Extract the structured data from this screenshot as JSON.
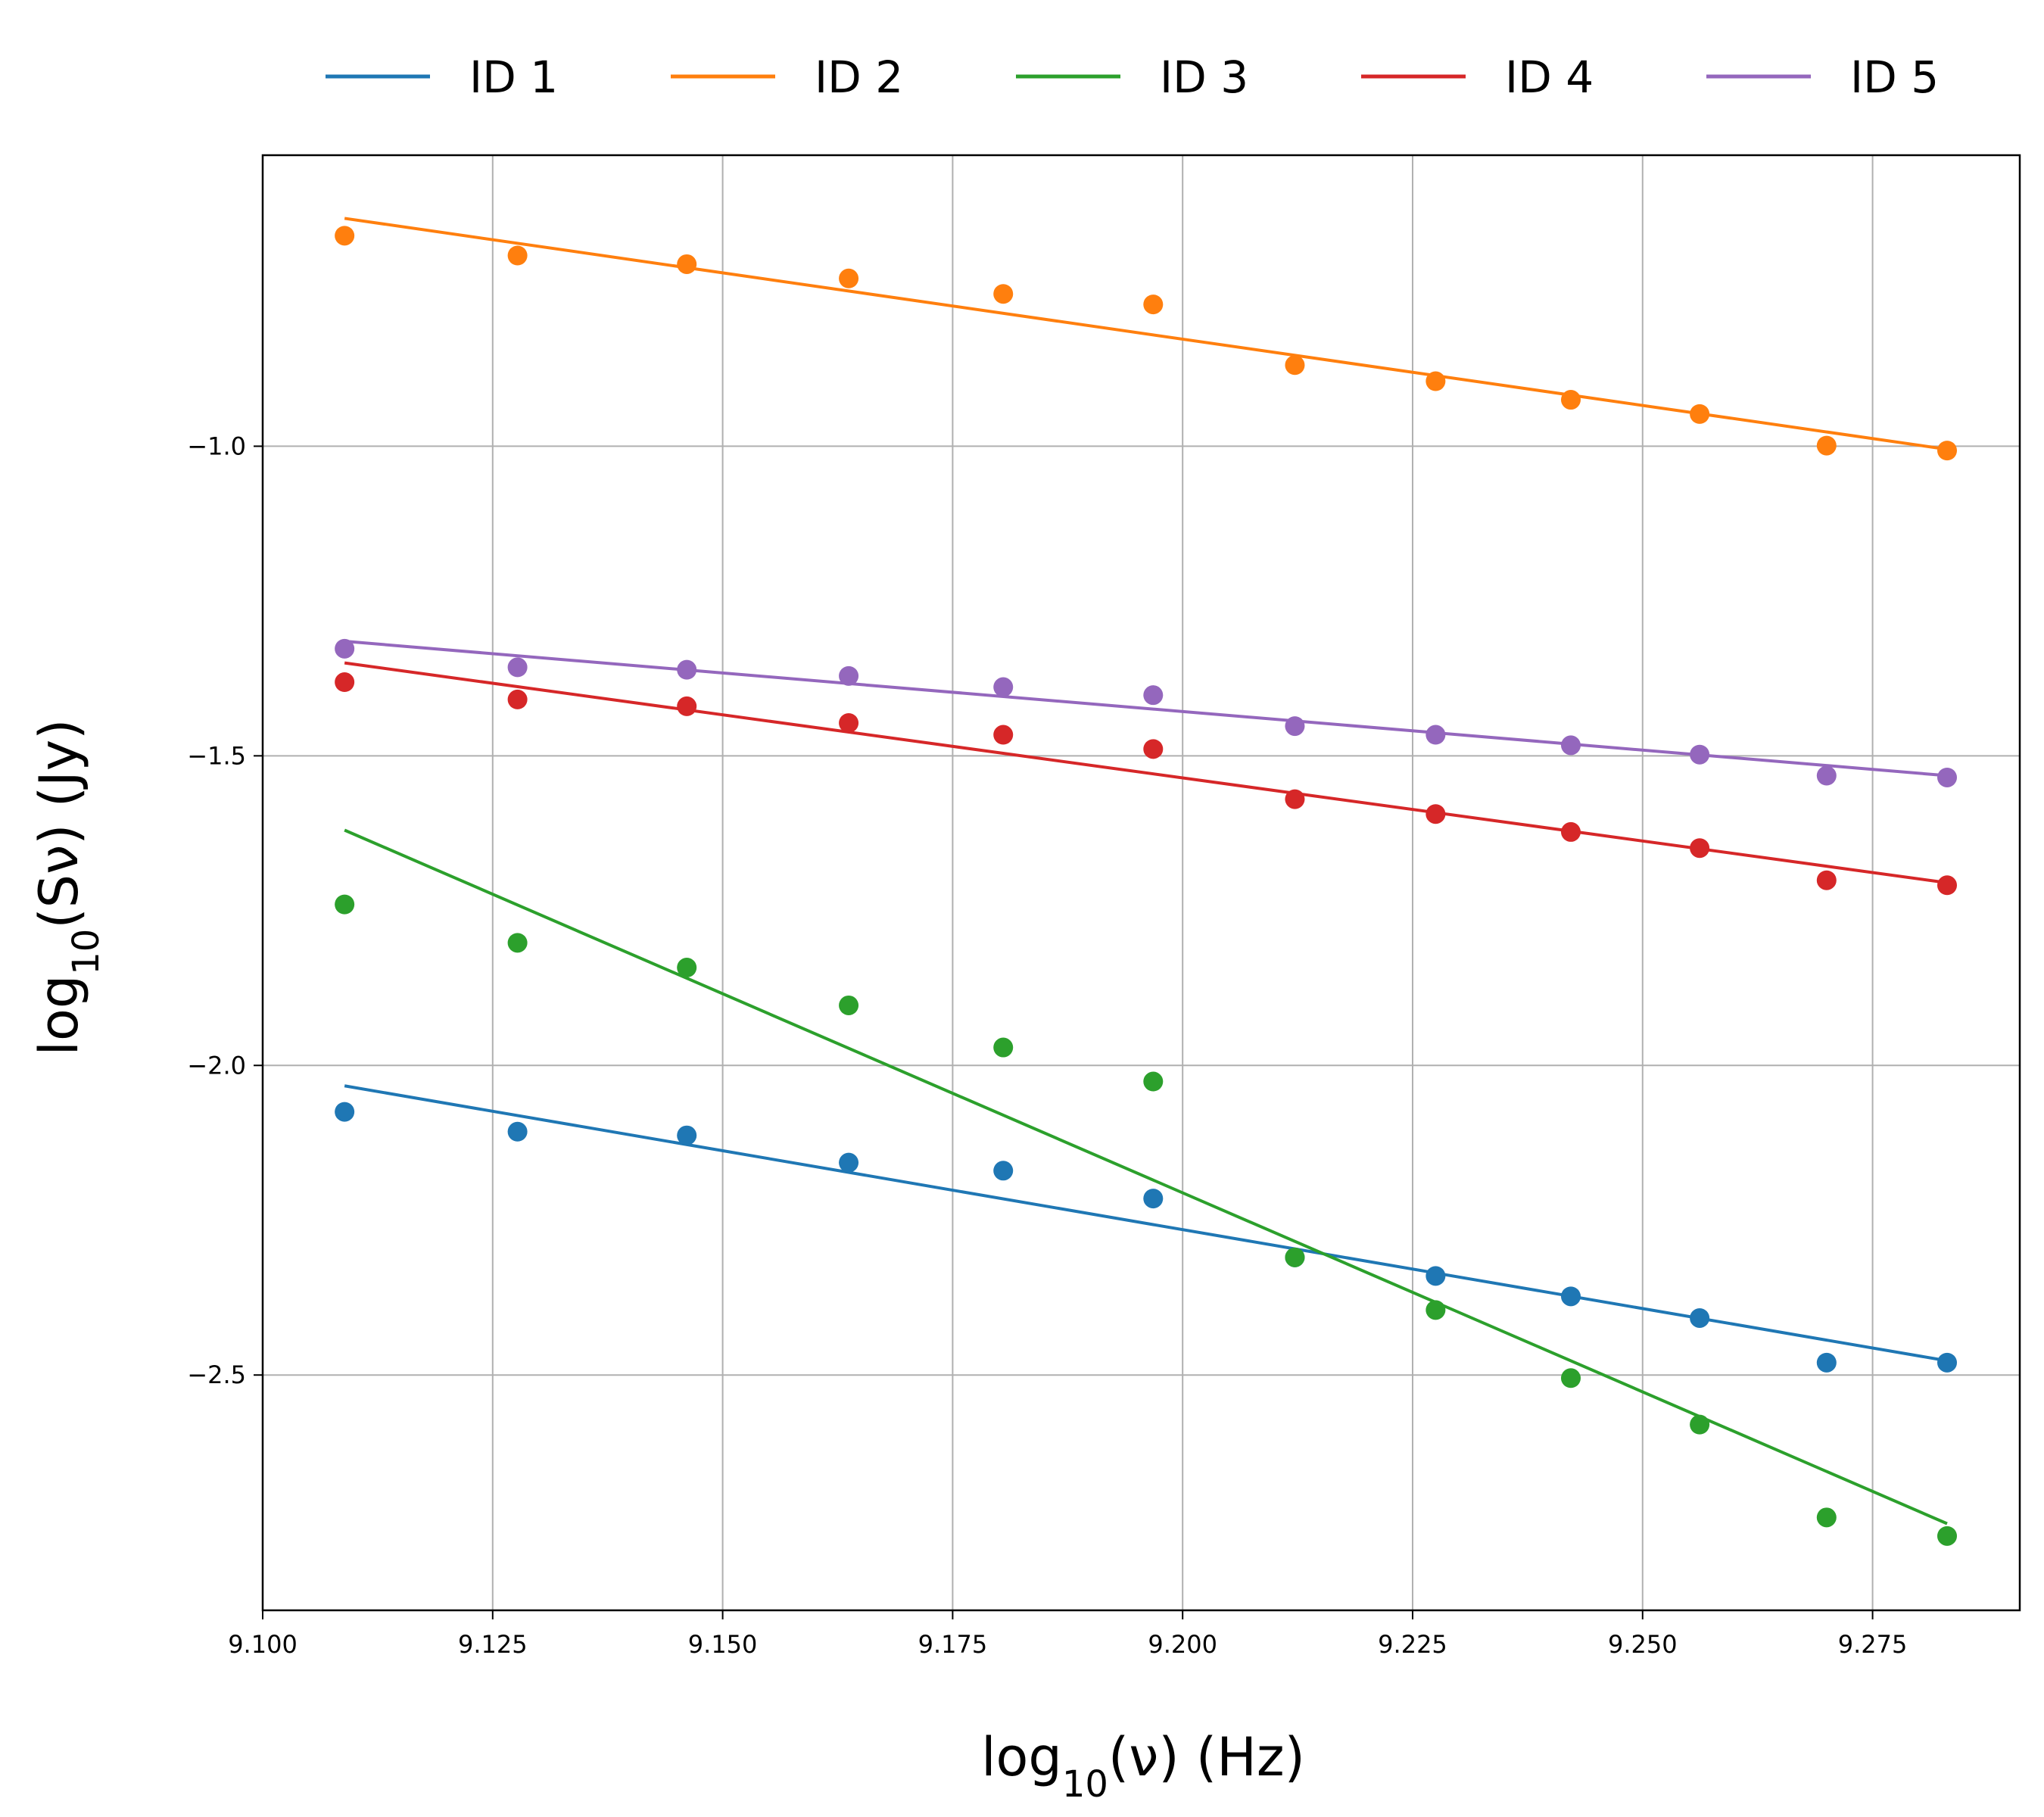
{
  "chart_data": {
    "type": "scatter",
    "xlabel": {
      "pre": "log",
      "sub": "10",
      "post": "(ν) (Hz)"
    },
    "ylabel": {
      "pre": "log",
      "sub": "10",
      "post": "(Sν) (Jy)"
    },
    "xlim": [
      9.1,
      9.291
    ],
    "ylim": [
      -2.88,
      -0.53
    ],
    "xticks": [
      9.1,
      9.125,
      9.15,
      9.175,
      9.2,
      9.225,
      9.25,
      9.275
    ],
    "xtick_labels": [
      "9.100",
      "9.125",
      "9.150",
      "9.175",
      "9.200",
      "9.225",
      "9.250",
      "9.275"
    ],
    "yticks": [
      -1.0,
      -1.5,
      -2.0,
      -2.5
    ],
    "ytick_labels": [
      "−1.0",
      "−1.5",
      "−2.0",
      "−2.5"
    ],
    "grid": true,
    "legend_position": "top-center-outside",
    "x": [
      9.1089,
      9.1277,
      9.1461,
      9.1637,
      9.1805,
      9.1968,
      9.2122,
      9.2275,
      9.2422,
      9.2562,
      9.27,
      9.2831
    ],
    "series": [
      {
        "name": "ID 1",
        "color": "#1f77b4",
        "values": [
          -2.075,
          -2.107,
          -2.113,
          -2.157,
          -2.17,
          -2.215,
          -2.31,
          -2.34,
          -2.373,
          -2.408,
          -2.48,
          -2.48
        ],
        "fit": [
          -2.033,
          -2.477
        ]
      },
      {
        "name": "ID 2",
        "color": "#ff7f0e",
        "values": [
          -0.66,
          -0.692,
          -0.706,
          -0.729,
          -0.754,
          -0.771,
          -0.869,
          -0.895,
          -0.925,
          -0.948,
          -0.999,
          -1.007
        ],
        "fit": [
          -0.632,
          -1.005
        ]
      },
      {
        "name": "ID 3",
        "color": "#2ca02c",
        "values": [
          -1.74,
          -1.802,
          -1.842,
          -1.903,
          -1.971,
          -2.026,
          -2.31,
          -2.395,
          -2.505,
          -2.58,
          -2.73,
          -2.76
        ],
        "fit": [
          -1.62,
          -2.74
        ]
      },
      {
        "name": "ID 4",
        "color": "#d62728",
        "values": [
          -1.381,
          -1.409,
          -1.42,
          -1.447,
          -1.466,
          -1.489,
          -1.57,
          -1.594,
          -1.623,
          -1.649,
          -1.701,
          -1.709
        ],
        "fit": [
          -1.35,
          -1.705
        ]
      },
      {
        "name": "ID 5",
        "color": "#9467bd",
        "values": [
          -1.327,
          -1.357,
          -1.361,
          -1.371,
          -1.389,
          -1.402,
          -1.452,
          -1.466,
          -1.483,
          -1.498,
          -1.532,
          -1.535
        ],
        "fit": [
          -1.315,
          -1.532
        ]
      }
    ]
  }
}
